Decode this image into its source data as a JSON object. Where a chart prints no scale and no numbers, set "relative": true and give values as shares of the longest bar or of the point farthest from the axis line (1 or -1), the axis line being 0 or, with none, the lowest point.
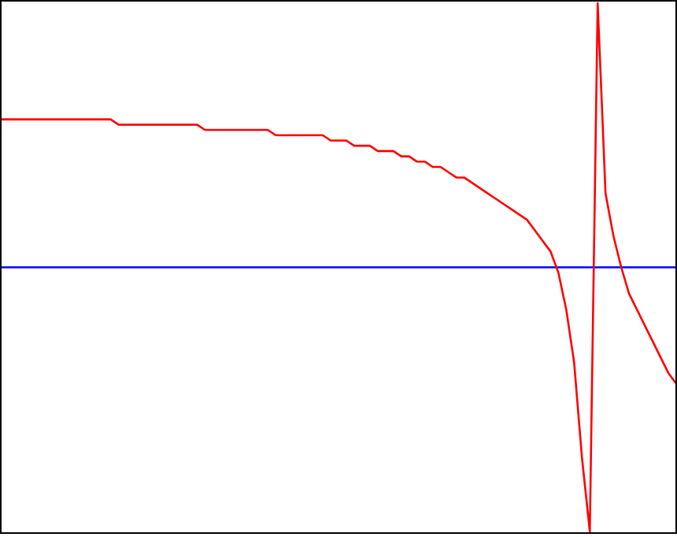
{
  "chart_data": {
    "type": "line",
    "relative": true,
    "categories": [
      null,
      null,
      null,
      null,
      null,
      null,
      null,
      null,
      null,
      null,
      null,
      null,
      null,
      null,
      null,
      null,
      null,
      null,
      null,
      null,
      null,
      null,
      null,
      null,
      null,
      null,
      null,
      null,
      null,
      null,
      null,
      null,
      null,
      null,
      null,
      null,
      null,
      null,
      null,
      null,
      null,
      null,
      null,
      null,
      null,
      null,
      null,
      null,
      null,
      null,
      null,
      null,
      null,
      null,
      null,
      null,
      null,
      null,
      null,
      null,
      null,
      null,
      null,
      null,
      null,
      null,
      null,
      null,
      null,
      null,
      null,
      null,
      null,
      null,
      null,
      null,
      null,
      null,
      null,
      null,
      null,
      null,
      null,
      null,
      null,
      null,
      null
    ],
    "series": [
      {
        "color": "#ff0000",
        "values": [
          0.78,
          0.78,
          0.78,
          0.78,
          0.78,
          0.78,
          0.78,
          0.78,
          0.78,
          0.78,
          0.78,
          0.78,
          0.78,
          0.78,
          0.78,
          0.77,
          0.77,
          0.77,
          0.77,
          0.77,
          0.77,
          0.77,
          0.77,
          0.77,
          0.77,
          0.77,
          0.76,
          0.76,
          0.76,
          0.76,
          0.76,
          0.76,
          0.76,
          0.76,
          0.76,
          0.75,
          0.75,
          0.75,
          0.75,
          0.75,
          0.75,
          0.75,
          0.74,
          0.74,
          0.74,
          0.73,
          0.73,
          0.73,
          0.72,
          0.72,
          0.72,
          0.71,
          0.71,
          0.7,
          0.7,
          0.69,
          0.69,
          0.68,
          0.67,
          0.67,
          0.66,
          0.65,
          0.64,
          0.63,
          0.62,
          0.61,
          0.6,
          0.59,
          0.57,
          0.55,
          0.53,
          0.49,
          0.42,
          0.32,
          0.14,
          0,
          1,
          0.64,
          0.56,
          0.5,
          0.45,
          0.42,
          0.39,
          0.36,
          0.33,
          0.3,
          0.28
        ]
      }
    ],
    "ref_lines": [
      {
        "axis": "y",
        "value": 0.5,
        "color": "#0000ff"
      }
    ],
    "line_style": "solid",
    "marker": "none"
  }
}
